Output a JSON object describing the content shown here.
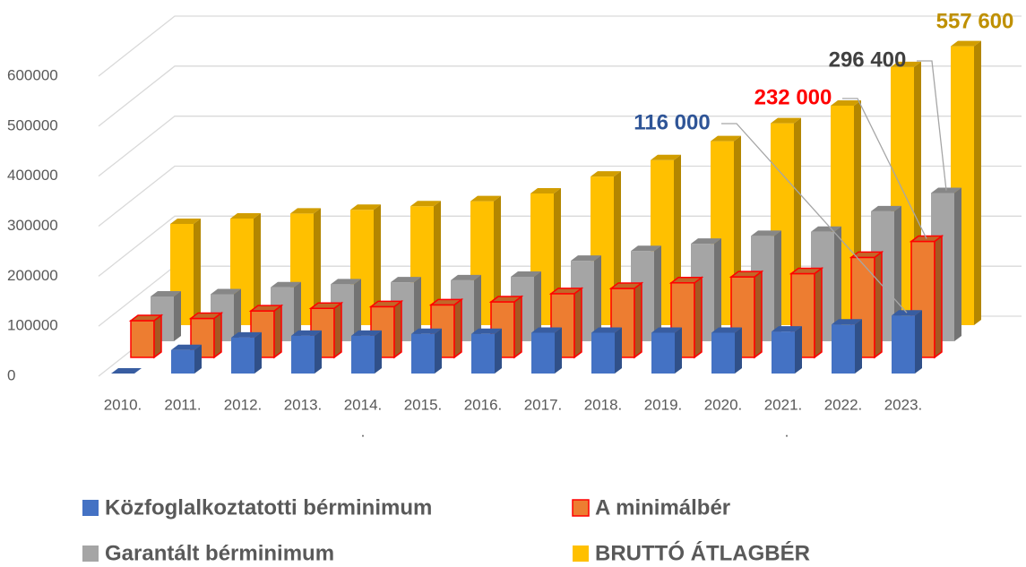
{
  "chart_data": {
    "type": "bar3d",
    "categories": [
      "2010.",
      "2011.",
      "2012.",
      "2013.",
      "2014.",
      "2015.",
      "2016.",
      "2017.",
      "2018.",
      "2019.",
      "2020.",
      "2021.",
      "2022.",
      "2023."
    ],
    "annotations": [
      ".",
      "."
    ],
    "series": [
      {
        "name": "Közfoglalkoztatotti bérminimum",
        "color": "#4472c4",
        "label_color": "#2f5597",
        "values": [
          0,
          47000,
          71800,
          75500,
          75500,
          79155,
          79155,
          81530,
          81530,
          81530,
          81530,
          84000,
          98000,
          116000
        ],
        "value_labels": [
          null,
          null,
          null,
          null,
          null,
          null,
          null,
          null,
          null,
          null,
          null,
          null,
          null,
          "116 000"
        ]
      },
      {
        "name": "A minimálbér",
        "color": "#ed7d31",
        "edgecolor": "#ff0000",
        "label_color": "#ff0000",
        "values": [
          73500,
          78000,
          93000,
          98000,
          101500,
          105000,
          111000,
          127500,
          138000,
          149000,
          161000,
          167400,
          200000,
          232000
        ],
        "value_labels": [
          null,
          null,
          null,
          null,
          null,
          null,
          null,
          null,
          null,
          null,
          null,
          null,
          null,
          "232 000"
        ]
      },
      {
        "name": "Garantált bérminimum",
        "color": "#a5a5a5",
        "label_color": "#404040",
        "values": [
          89500,
          94000,
          108000,
          114000,
          118000,
          122000,
          129000,
          161000,
          180500,
          195000,
          210600,
          219000,
          260000,
          296400
        ],
        "value_labels": [
          null,
          null,
          null,
          null,
          null,
          null,
          null,
          null,
          null,
          null,
          null,
          null,
          null,
          "296 400"
        ]
      },
      {
        "name": "BRUTTÓ ÁTLAGBÉR",
        "color": "#ffc000",
        "label_color": "#bf9000",
        "values": [
          202500,
          213100,
          223100,
          230700,
          237700,
          247800,
          263200,
          297000,
          329900,
          367800,
          403600,
          438800,
          516000,
          557600
        ],
        "value_labels": [
          null,
          null,
          null,
          null,
          null,
          null,
          null,
          null,
          null,
          null,
          null,
          null,
          null,
          "557 600"
        ]
      }
    ],
    "ylim": [
      0,
      600000
    ],
    "yticks": [
      0,
      100000,
      200000,
      300000,
      400000,
      500000,
      600000
    ],
    "grid": true,
    "legend": "bottom"
  }
}
